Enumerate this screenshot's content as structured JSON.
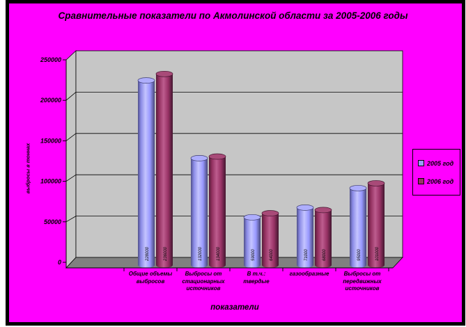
{
  "window": {
    "outer_background": "#FFFFFF",
    "border_color": "#000000",
    "background": "#FF00FF"
  },
  "chart_data": {
    "type": "bar",
    "style": "3d-cylinder",
    "title": "Сравнительные показатели по Акмолинской области  за 2005-2006 годы",
    "xlabel": "показатели",
    "ylabel": "выбросы в тоннах",
    "categories": [
      "Общие объемы выбросов",
      "Выбросы от стационарных источников",
      "В т.ч.: твердые",
      "газообразные",
      "Выбросы от передвижных источников"
    ],
    "series": [
      {
        "name": "2005 год",
        "color": "#9999FF",
        "values": [
          228000,
          132000,
          59000,
          71000,
          95000
        ]
      },
      {
        "name": "2006 год",
        "color": "#993366",
        "values": [
          236000,
          134000,
          64000,
          68000,
          101000
        ]
      }
    ],
    "ylim": [
      0,
      250000
    ],
    "ytick_step": 50000,
    "yticks": [
      "0",
      "50000",
      "100000",
      "150000",
      "200000",
      "250000"
    ],
    "grid": true,
    "legend_position": "right",
    "plot_background": "#C6C6C6",
    "floor_color": "#808080",
    "bar_value_labels_rotated": true
  }
}
